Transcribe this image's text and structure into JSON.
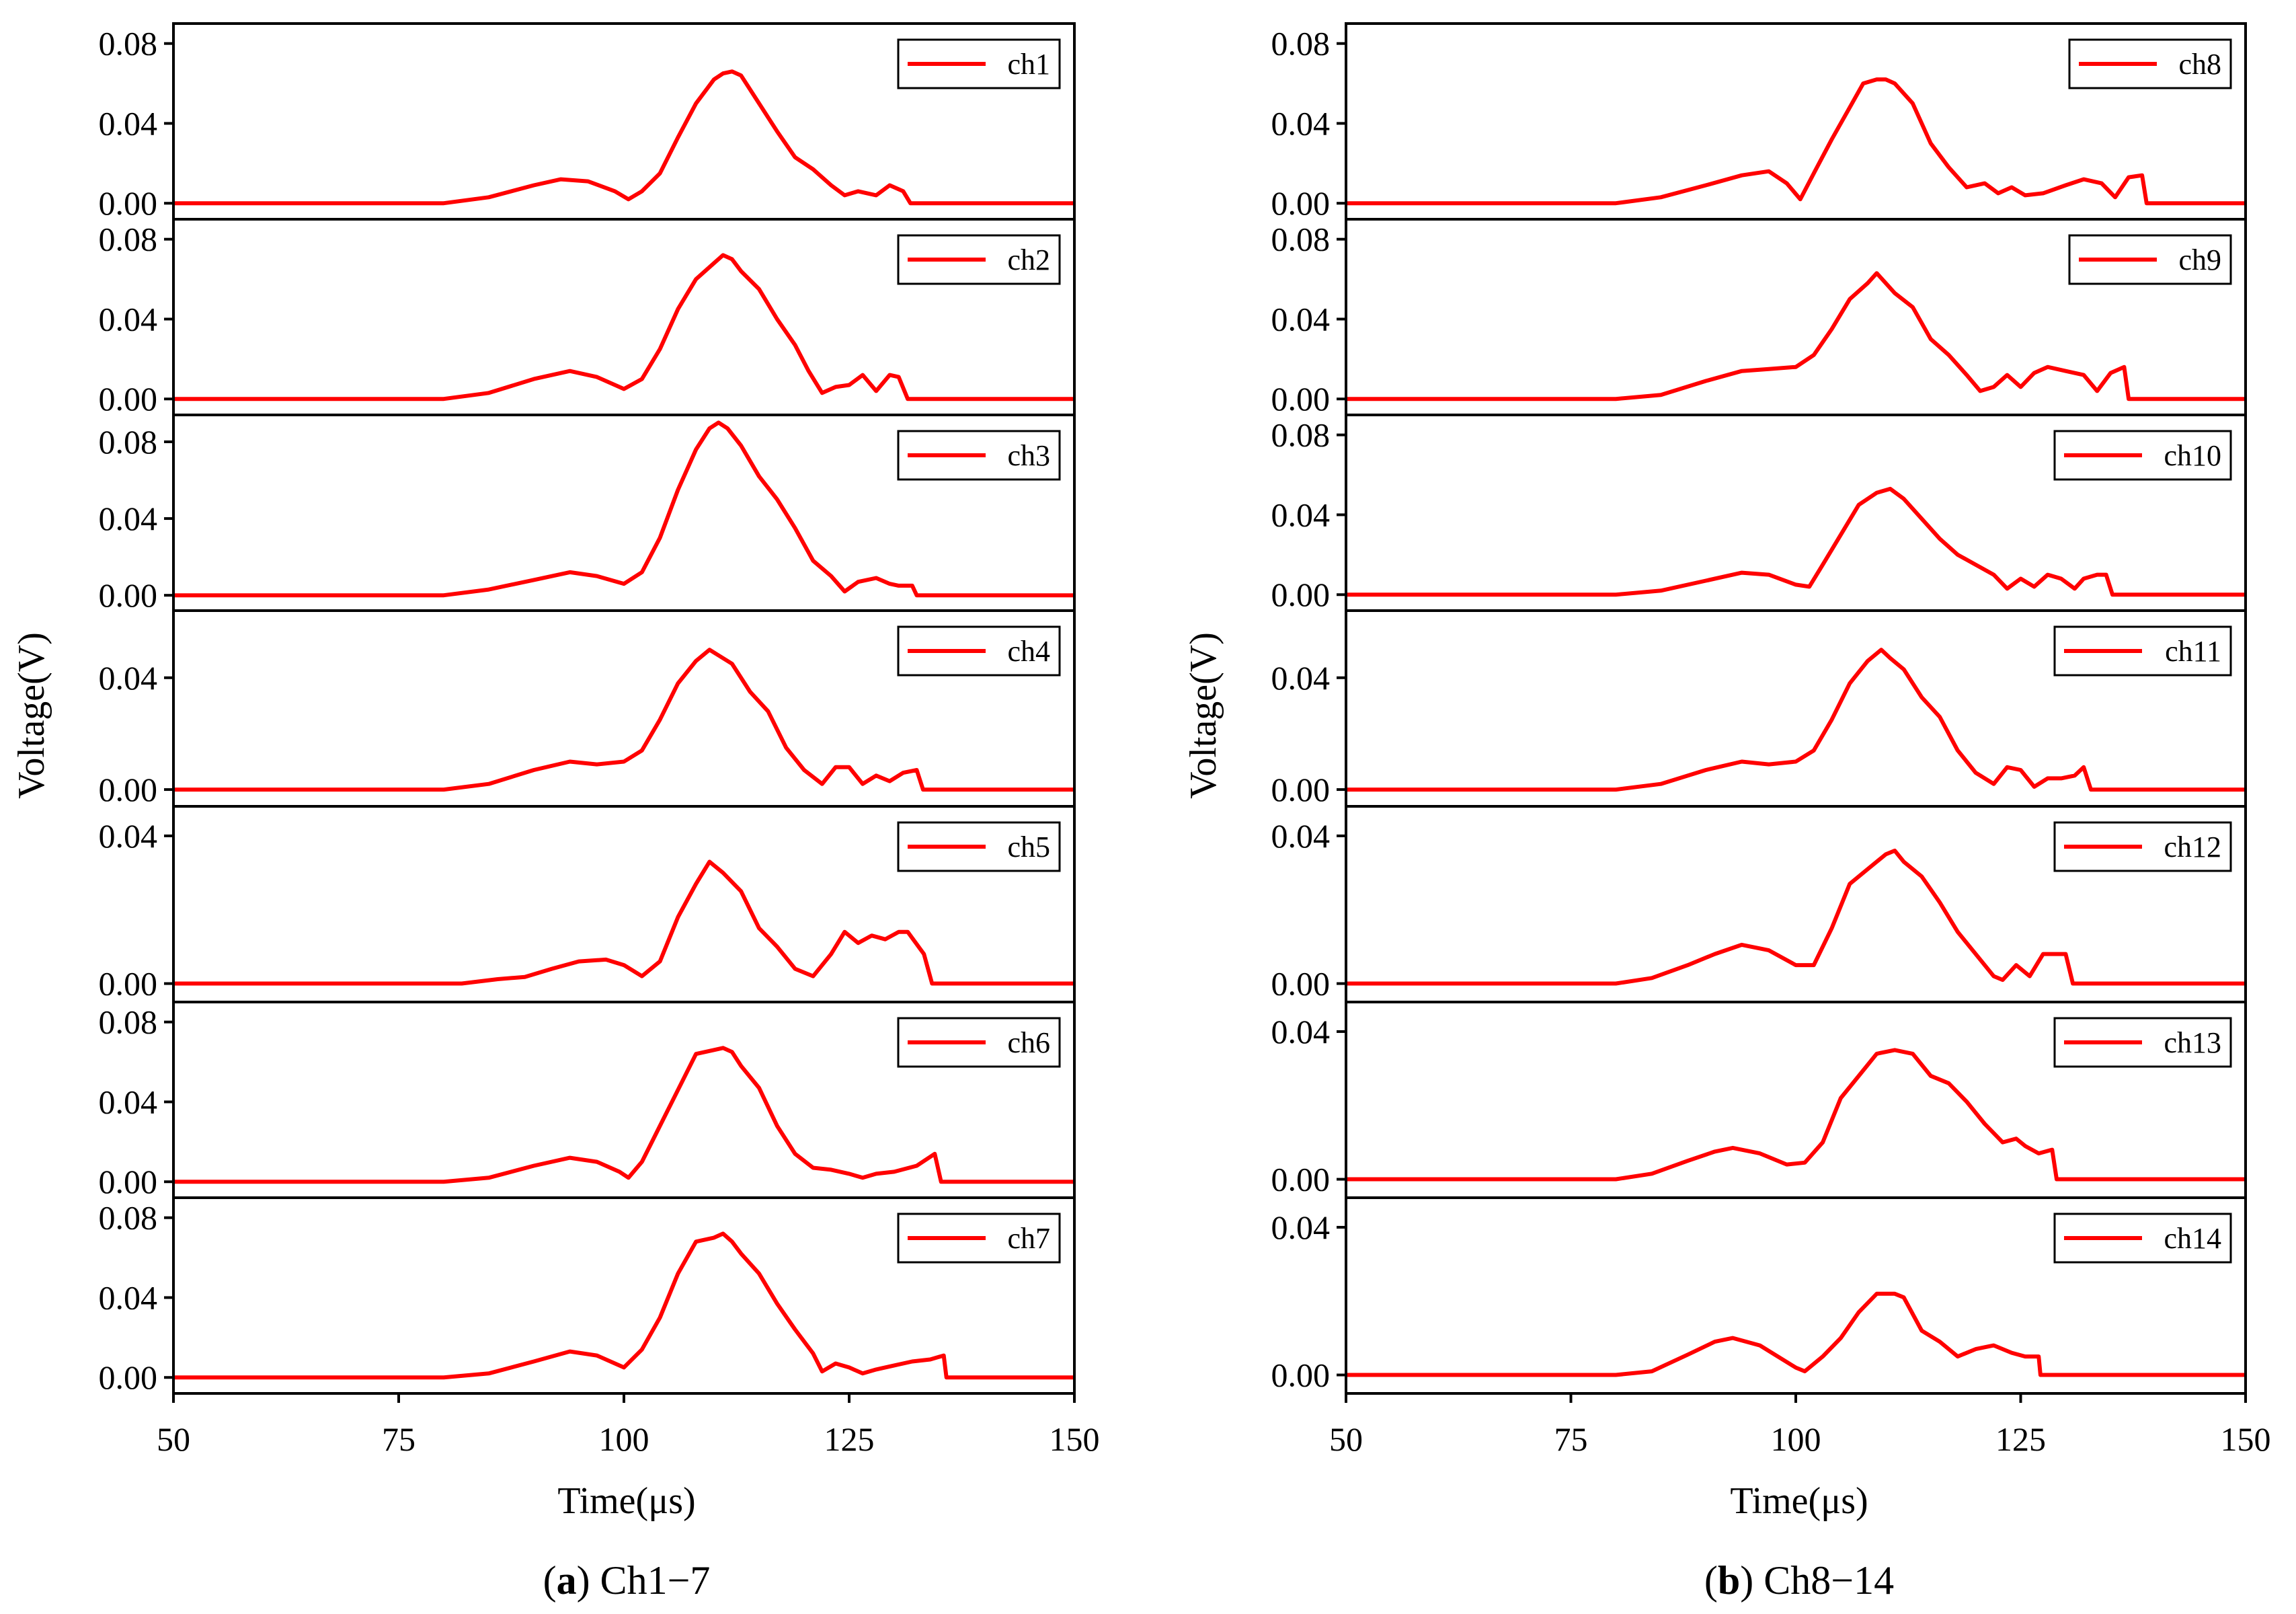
{
  "chart_data": [
    {
      "type": "line",
      "caption_letter": "a",
      "caption_text": " Ch1−7",
      "xlabel": "Time(μs)",
      "ylabel": "Voltage(V)",
      "xlim": [
        50,
        150
      ],
      "xticks": [
        50,
        75,
        100,
        125,
        150
      ],
      "xtick_labels": [
        "50",
        "75",
        "100",
        "125",
        "150"
      ],
      "color": "#ff0000",
      "subplots": [
        {
          "name": "ch1",
          "ylim": [
            -0.008,
            0.09
          ],
          "yticks": [
            0,
            0.04,
            0.08
          ],
          "ytick_labels": [
            "0.00",
            "0.04",
            "0.08"
          ],
          "x": [
            50,
            80,
            85,
            90,
            93,
            96,
            99,
            100.5,
            102,
            104,
            106,
            108,
            110,
            111,
            112,
            113,
            115,
            117,
            119,
            121,
            123,
            124.5,
            126,
            128,
            129.5,
            131,
            131.8,
            150
          ],
          "y": [
            0,
            0,
            0.003,
            0.009,
            0.012,
            0.011,
            0.006,
            0.002,
            0.006,
            0.015,
            0.033,
            0.05,
            0.062,
            0.065,
            0.066,
            0.064,
            0.05,
            0.036,
            0.023,
            0.017,
            0.009,
            0.004,
            0.006,
            0.004,
            0.009,
            0.006,
            0,
            0
          ]
        },
        {
          "name": "ch2",
          "ylim": [
            -0.008,
            0.09
          ],
          "yticks": [
            0,
            0.04,
            0.08
          ],
          "ytick_labels": [
            "0.00",
            "0.04",
            "0.08"
          ],
          "x": [
            50,
            80,
            85,
            90,
            94,
            97,
            100,
            102,
            104,
            106,
            108,
            110,
            111,
            112,
            113,
            115,
            117,
            119,
            120.5,
            122,
            123.5,
            125,
            126.5,
            128,
            129.5,
            130.5,
            131.5,
            150
          ],
          "y": [
            0,
            0,
            0.003,
            0.01,
            0.014,
            0.011,
            0.005,
            0.01,
            0.025,
            0.045,
            0.06,
            0.068,
            0.072,
            0.07,
            0.064,
            0.055,
            0.04,
            0.027,
            0.014,
            0.003,
            0.006,
            0.007,
            0.012,
            0.004,
            0.012,
            0.011,
            0,
            0
          ]
        },
        {
          "name": "ch3",
          "ylim": [
            -0.008,
            0.094
          ],
          "yticks": [
            0,
            0.04,
            0.08
          ],
          "ytick_labels": [
            "0.00",
            "0.04",
            "0.08"
          ],
          "x": [
            50,
            80,
            85,
            90,
            94,
            97,
            100,
            102,
            104,
            106,
            108,
            109.5,
            110.5,
            111.5,
            113,
            115,
            117,
            119,
            121,
            123,
            124.5,
            126,
            128,
            129.5,
            130.5,
            132,
            132.5,
            150
          ],
          "y": [
            0,
            0,
            0.003,
            0.008,
            0.012,
            0.01,
            0.006,
            0.012,
            0.03,
            0.055,
            0.076,
            0.087,
            0.09,
            0.087,
            0.078,
            0.062,
            0.05,
            0.035,
            0.018,
            0.01,
            0.002,
            0.007,
            0.009,
            0.006,
            0.005,
            0.005,
            0,
            0
          ]
        },
        {
          "name": "ch4",
          "ylim": [
            -0.006,
            0.064
          ],
          "yticks": [
            0,
            0.04
          ],
          "ytick_labels": [
            "0.00",
            "0.04"
          ],
          "x": [
            50,
            80,
            85,
            90,
            94,
            97,
            100,
            102,
            104,
            106,
            108,
            109.5,
            110.5,
            112,
            114,
            116,
            118,
            120,
            122,
            123.5,
            125,
            126.5,
            128,
            129.5,
            131,
            132.5,
            133.2,
            150
          ],
          "y": [
            0,
            0,
            0.002,
            0.007,
            0.01,
            0.009,
            0.01,
            0.014,
            0.025,
            0.038,
            0.046,
            0.05,
            0.048,
            0.045,
            0.035,
            0.028,
            0.015,
            0.007,
            0.002,
            0.008,
            0.008,
            0.002,
            0.005,
            0.003,
            0.006,
            0.007,
            0,
            0
          ]
        },
        {
          "name": "ch5",
          "ylim": [
            -0.005,
            0.048
          ],
          "yticks": [
            0,
            0.04
          ],
          "ytick_labels": [
            "0.00",
            "0.04"
          ],
          "x": [
            50,
            82,
            86,
            89,
            92,
            95,
            98,
            100,
            102,
            104,
            106,
            108,
            109.5,
            111,
            113,
            115,
            117,
            119,
            121,
            123,
            124.5,
            126,
            127.5,
            129,
            130.5,
            131.5,
            133.3,
            134.2,
            150
          ],
          "y": [
            0,
            0,
            0.0012,
            0.0018,
            0.004,
            0.006,
            0.0065,
            0.005,
            0.002,
            0.006,
            0.018,
            0.027,
            0.033,
            0.03,
            0.025,
            0.015,
            0.01,
            0.004,
            0.002,
            0.008,
            0.014,
            0.011,
            0.013,
            0.012,
            0.014,
            0.014,
            0.008,
            0,
            0
          ]
        },
        {
          "name": "ch6",
          "ylim": [
            -0.008,
            0.09
          ],
          "yticks": [
            0,
            0.04,
            0.08
          ],
          "ytick_labels": [
            "0.00",
            "0.04",
            "0.08"
          ],
          "x": [
            50,
            80,
            85,
            90,
            94,
            97,
            99.5,
            100.5,
            102,
            104,
            106,
            108,
            110,
            111,
            112,
            113,
            115,
            117,
            119,
            121,
            123,
            125,
            126.5,
            128,
            130,
            132.5,
            134.5,
            135.2,
            150
          ],
          "y": [
            0,
            0,
            0.002,
            0.008,
            0.012,
            0.01,
            0.005,
            0.002,
            0.01,
            0.028,
            0.046,
            0.064,
            0.066,
            0.067,
            0.065,
            0.058,
            0.047,
            0.028,
            0.014,
            0.007,
            0.006,
            0.004,
            0.002,
            0.004,
            0.005,
            0.008,
            0.014,
            0,
            0
          ]
        },
        {
          "name": "ch7",
          "ylim": [
            -0.008,
            0.09
          ],
          "yticks": [
            0,
            0.04,
            0.08
          ],
          "ytick_labels": [
            "0.00",
            "0.04",
            "0.08"
          ],
          "x": [
            50,
            80,
            85,
            90,
            94,
            97,
            100,
            102,
            104,
            106,
            108,
            110,
            111,
            112,
            113,
            115,
            117,
            119,
            121,
            122,
            123.5,
            125,
            126.5,
            128,
            130,
            132,
            134,
            135.5,
            135.8,
            150
          ],
          "y": [
            0,
            0,
            0.002,
            0.008,
            0.013,
            0.011,
            0.005,
            0.014,
            0.03,
            0.052,
            0.068,
            0.07,
            0.072,
            0.068,
            0.062,
            0.052,
            0.037,
            0.024,
            0.012,
            0.003,
            0.007,
            0.005,
            0.002,
            0.004,
            0.006,
            0.008,
            0.009,
            0.011,
            0,
            0
          ]
        }
      ]
    },
    {
      "type": "line",
      "caption_letter": "b",
      "caption_text": " Ch8−14",
      "xlabel": "Time(μs)",
      "ylabel": "Voltage(V)",
      "xlim": [
        50,
        150
      ],
      "xticks": [
        50,
        75,
        100,
        125,
        150
      ],
      "xtick_labels": [
        "50",
        "75",
        "100",
        "125",
        "150"
      ],
      "color": "#ff0000",
      "subplots": [
        {
          "name": "ch8",
          "ylim": [
            -0.008,
            0.09
          ],
          "yticks": [
            0,
            0.04,
            0.08
          ],
          "ytick_labels": [
            "0.00",
            "0.04",
            "0.08"
          ],
          "x": [
            50,
            80,
            85,
            90,
            94,
            97,
            99,
            100.5,
            102,
            104,
            106,
            107.5,
            109,
            110,
            111,
            113,
            115,
            117,
            119,
            121,
            122.5,
            124,
            125.5,
            127.5,
            130,
            132,
            134,
            135.5,
            137,
            138.5,
            139,
            150
          ],
          "y": [
            0,
            0,
            0.003,
            0.009,
            0.014,
            0.016,
            0.01,
            0.002,
            0.015,
            0.032,
            0.048,
            0.06,
            0.062,
            0.062,
            0.06,
            0.05,
            0.03,
            0.018,
            0.008,
            0.01,
            0.005,
            0.008,
            0.004,
            0.005,
            0.009,
            0.012,
            0.01,
            0.003,
            0.013,
            0.014,
            0,
            0
          ]
        },
        {
          "name": "ch9",
          "ylim": [
            -0.008,
            0.09
          ],
          "yticks": [
            0,
            0.04,
            0.08
          ],
          "ytick_labels": [
            "0.00",
            "0.04",
            "0.08"
          ],
          "x": [
            50,
            80,
            85,
            90,
            94,
            97,
            100,
            102,
            104,
            106,
            108,
            109,
            110,
            111,
            113,
            115,
            117,
            119,
            120.5,
            122,
            123.5,
            125,
            126.5,
            128,
            130,
            132,
            133.5,
            135,
            136.5,
            137,
            150
          ],
          "y": [
            0,
            0,
            0.002,
            0.009,
            0.014,
            0.015,
            0.016,
            0.022,
            0.035,
            0.05,
            0.058,
            0.063,
            0.058,
            0.053,
            0.046,
            0.03,
            0.022,
            0.012,
            0.004,
            0.006,
            0.012,
            0.006,
            0.013,
            0.016,
            0.014,
            0.012,
            0.004,
            0.013,
            0.016,
            0,
            0
          ]
        },
        {
          "name": "ch10",
          "ylim": [
            -0.008,
            0.09
          ],
          "yticks": [
            0,
            0.04,
            0.08
          ],
          "ytick_labels": [
            "0.00",
            "0.04",
            "0.08"
          ],
          "x": [
            50,
            80,
            85,
            90,
            94,
            97,
            100,
            101.5,
            103,
            105,
            107,
            109,
            110.5,
            112,
            114,
            116,
            118,
            120,
            122,
            123.5,
            125,
            126.5,
            128,
            129.5,
            131,
            132,
            133.5,
            134.5,
            135.2,
            150
          ],
          "y": [
            0,
            0,
            0.002,
            0.007,
            0.011,
            0.01,
            0.005,
            0.004,
            0.015,
            0.03,
            0.045,
            0.051,
            0.053,
            0.048,
            0.038,
            0.028,
            0.02,
            0.015,
            0.01,
            0.003,
            0.008,
            0.004,
            0.01,
            0.008,
            0.003,
            0.008,
            0.01,
            0.01,
            0,
            0
          ]
        },
        {
          "name": "ch11",
          "ylim": [
            -0.006,
            0.064
          ],
          "yticks": [
            0,
            0.04
          ],
          "ytick_labels": [
            "0.00",
            "0.04"
          ],
          "x": [
            50,
            80,
            85,
            90,
            94,
            97,
            100,
            102,
            104,
            106,
            108,
            109.5,
            110.5,
            112,
            114,
            116,
            118,
            120,
            122,
            123.5,
            125,
            126.5,
            128,
            129.5,
            131,
            132,
            132.8,
            150
          ],
          "y": [
            0,
            0,
            0.002,
            0.007,
            0.01,
            0.009,
            0.01,
            0.014,
            0.025,
            0.038,
            0.046,
            0.05,
            0.047,
            0.043,
            0.033,
            0.026,
            0.014,
            0.006,
            0.002,
            0.008,
            0.007,
            0.001,
            0.004,
            0.004,
            0.005,
            0.008,
            0,
            0
          ]
        },
        {
          "name": "ch12",
          "ylim": [
            -0.005,
            0.048
          ],
          "yticks": [
            0,
            0.04
          ],
          "ytick_labels": [
            "0.00",
            "0.04"
          ],
          "x": [
            50,
            80,
            84,
            88,
            91,
            94,
            97,
            100,
            102,
            104,
            106,
            108,
            110,
            111,
            112,
            114,
            116,
            118,
            120,
            122,
            123,
            124.5,
            126,
            127.5,
            129,
            130,
            130.8,
            150
          ],
          "y": [
            0,
            0,
            0.0015,
            0.005,
            0.008,
            0.0105,
            0.009,
            0.005,
            0.005,
            0.015,
            0.027,
            0.031,
            0.035,
            0.036,
            0.033,
            0.029,
            0.022,
            0.014,
            0.008,
            0.002,
            0.001,
            0.005,
            0.002,
            0.008,
            0.008,
            0.008,
            0,
            0
          ]
        },
        {
          "name": "ch13",
          "ylim": [
            -0.005,
            0.048
          ],
          "yticks": [
            0,
            0.04
          ],
          "ytick_labels": [
            "0.00",
            "0.04"
          ],
          "x": [
            50,
            80,
            84,
            88,
            91,
            93,
            96,
            99,
            101,
            103,
            105,
            107,
            109,
            111,
            113,
            115,
            117,
            119,
            121,
            123,
            124.5,
            125.5,
            127,
            128.5,
            129,
            150
          ],
          "y": [
            0,
            0,
            0.0015,
            0.005,
            0.0075,
            0.0085,
            0.007,
            0.004,
            0.0045,
            0.01,
            0.022,
            0.028,
            0.034,
            0.035,
            0.034,
            0.028,
            0.026,
            0.021,
            0.015,
            0.01,
            0.011,
            0.009,
            0.007,
            0.008,
            0,
            0
          ]
        },
        {
          "name": "ch14",
          "ylim": [
            -0.005,
            0.048
          ],
          "yticks": [
            0,
            0.04
          ],
          "ytick_labels": [
            "0.00",
            "0.04"
          ],
          "x": [
            50,
            80,
            84,
            88,
            91,
            93,
            96,
            98,
            100,
            101,
            103,
            105,
            107,
            109,
            111,
            112,
            114,
            116,
            118,
            120,
            122,
            124,
            125.5,
            127,
            127.2,
            150
          ],
          "y": [
            0,
            0,
            0.001,
            0.0055,
            0.009,
            0.01,
            0.008,
            0.005,
            0.002,
            0.001,
            0.005,
            0.01,
            0.017,
            0.022,
            0.022,
            0.021,
            0.012,
            0.009,
            0.005,
            0.007,
            0.008,
            0.006,
            0.005,
            0.005,
            0,
            0
          ]
        }
      ]
    }
  ]
}
